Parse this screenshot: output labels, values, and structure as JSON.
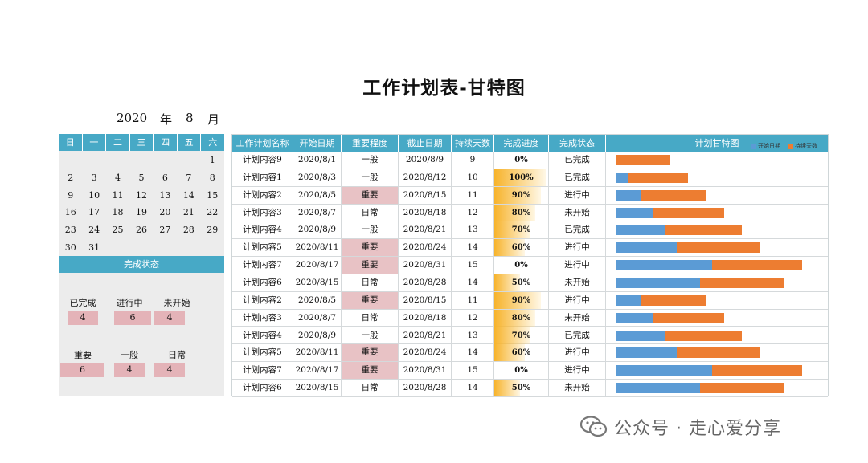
{
  "title": "工作计划表-甘特图",
  "calendar": {
    "year": "2020",
    "year_label": "年",
    "month": "8",
    "month_label": "月",
    "weekdays": [
      "日",
      "一",
      "二",
      "三",
      "四",
      "五",
      "六"
    ],
    "weeks": [
      [
        "",
        "",
        "",
        "",
        "",
        "",
        "1"
      ],
      [
        "2",
        "3",
        "4",
        "5",
        "6",
        "7",
        "8"
      ],
      [
        "9",
        "10",
        "11",
        "12",
        "13",
        "14",
        "15"
      ],
      [
        "16",
        "17",
        "18",
        "19",
        "20",
        "21",
        "22"
      ],
      [
        "23",
        "24",
        "25",
        "26",
        "27",
        "28",
        "29"
      ],
      [
        "30",
        "31",
        "",
        "",
        "",
        "",
        ""
      ]
    ]
  },
  "status_panel": {
    "title": "完成状态",
    "status": [
      {
        "label": "已完成",
        "count": "4"
      },
      {
        "label": "进行中",
        "count": "6"
      },
      {
        "label": "未开始",
        "count": "4"
      }
    ],
    "importance": [
      {
        "label": "重要",
        "count": "6"
      },
      {
        "label": "一般",
        "count": "4"
      },
      {
        "label": "日常",
        "count": "4"
      }
    ]
  },
  "table": {
    "headers": [
      "工作计划名称",
      "开始日期",
      "重要程度",
      "截止日期",
      "持续天数",
      "完成进度",
      "完成状态",
      "计划甘特图"
    ],
    "legend": [
      "开始日期",
      "持续天数"
    ],
    "colors": {
      "header": "#47a9c6",
      "start": "#5b9bd5",
      "duration": "#ed7d31",
      "important": "#e8c2c5",
      "progress": "#f7b32b"
    },
    "rows": [
      {
        "name": "计划内容9",
        "start": "2020/8/1",
        "importance": "一般",
        "end": "2020/8/9",
        "days": "9",
        "progress": "0%",
        "status": "已完成",
        "start_day": 1,
        "duration": 9
      },
      {
        "name": "计划内容1",
        "start": "2020/8/3",
        "importance": "一般",
        "end": "2020/8/12",
        "days": "10",
        "progress": "100%",
        "status": "已完成",
        "start_day": 3,
        "duration": 10
      },
      {
        "name": "计划内容2",
        "start": "2020/8/5",
        "importance": "重要",
        "end": "2020/8/15",
        "days": "11",
        "progress": "90%",
        "status": "进行中",
        "start_day": 5,
        "duration": 11
      },
      {
        "name": "计划内容3",
        "start": "2020/8/7",
        "importance": "日常",
        "end": "2020/8/18",
        "days": "12",
        "progress": "80%",
        "status": "未开始",
        "start_day": 7,
        "duration": 12
      },
      {
        "name": "计划内容4",
        "start": "2020/8/9",
        "importance": "一般",
        "end": "2020/8/21",
        "days": "13",
        "progress": "70%",
        "status": "已完成",
        "start_day": 9,
        "duration": 13
      },
      {
        "name": "计划内容5",
        "start": "2020/8/11",
        "importance": "重要",
        "end": "2020/8/24",
        "days": "14",
        "progress": "60%",
        "status": "进行中",
        "start_day": 11,
        "duration": 14
      },
      {
        "name": "计划内容7",
        "start": "2020/8/17",
        "importance": "重要",
        "end": "2020/8/31",
        "days": "15",
        "progress": "0%",
        "status": "进行中",
        "start_day": 17,
        "duration": 15
      },
      {
        "name": "计划内容6",
        "start": "2020/8/15",
        "importance": "日常",
        "end": "2020/8/28",
        "days": "14",
        "progress": "50%",
        "status": "未开始",
        "start_day": 15,
        "duration": 14
      },
      {
        "name": "计划内容2",
        "start": "2020/8/5",
        "importance": "重要",
        "end": "2020/8/15",
        "days": "11",
        "progress": "90%",
        "status": "进行中",
        "start_day": 5,
        "duration": 11
      },
      {
        "name": "计划内容3",
        "start": "2020/8/7",
        "importance": "日常",
        "end": "2020/8/18",
        "days": "12",
        "progress": "80%",
        "status": "未开始",
        "start_day": 7,
        "duration": 12
      },
      {
        "name": "计划内容4",
        "start": "2020/8/9",
        "importance": "一般",
        "end": "2020/8/21",
        "days": "13",
        "progress": "70%",
        "status": "已完成",
        "start_day": 9,
        "duration": 13
      },
      {
        "name": "计划内容5",
        "start": "2020/8/11",
        "importance": "重要",
        "end": "2020/8/24",
        "days": "14",
        "progress": "60%",
        "status": "进行中",
        "start_day": 11,
        "duration": 14
      },
      {
        "name": "计划内容7",
        "start": "2020/8/17",
        "importance": "重要",
        "end": "2020/8/31",
        "days": "15",
        "progress": "0%",
        "status": "进行中",
        "start_day": 17,
        "duration": 15
      },
      {
        "name": "计划内容6",
        "start": "2020/8/15",
        "importance": "日常",
        "end": "2020/8/28",
        "days": "14",
        "progress": "50%",
        "status": "未开始",
        "start_day": 15,
        "duration": 14
      }
    ]
  },
  "watermark": {
    "text": "公众号 · 走心爱分享",
    "icon": "wechat-icon"
  }
}
